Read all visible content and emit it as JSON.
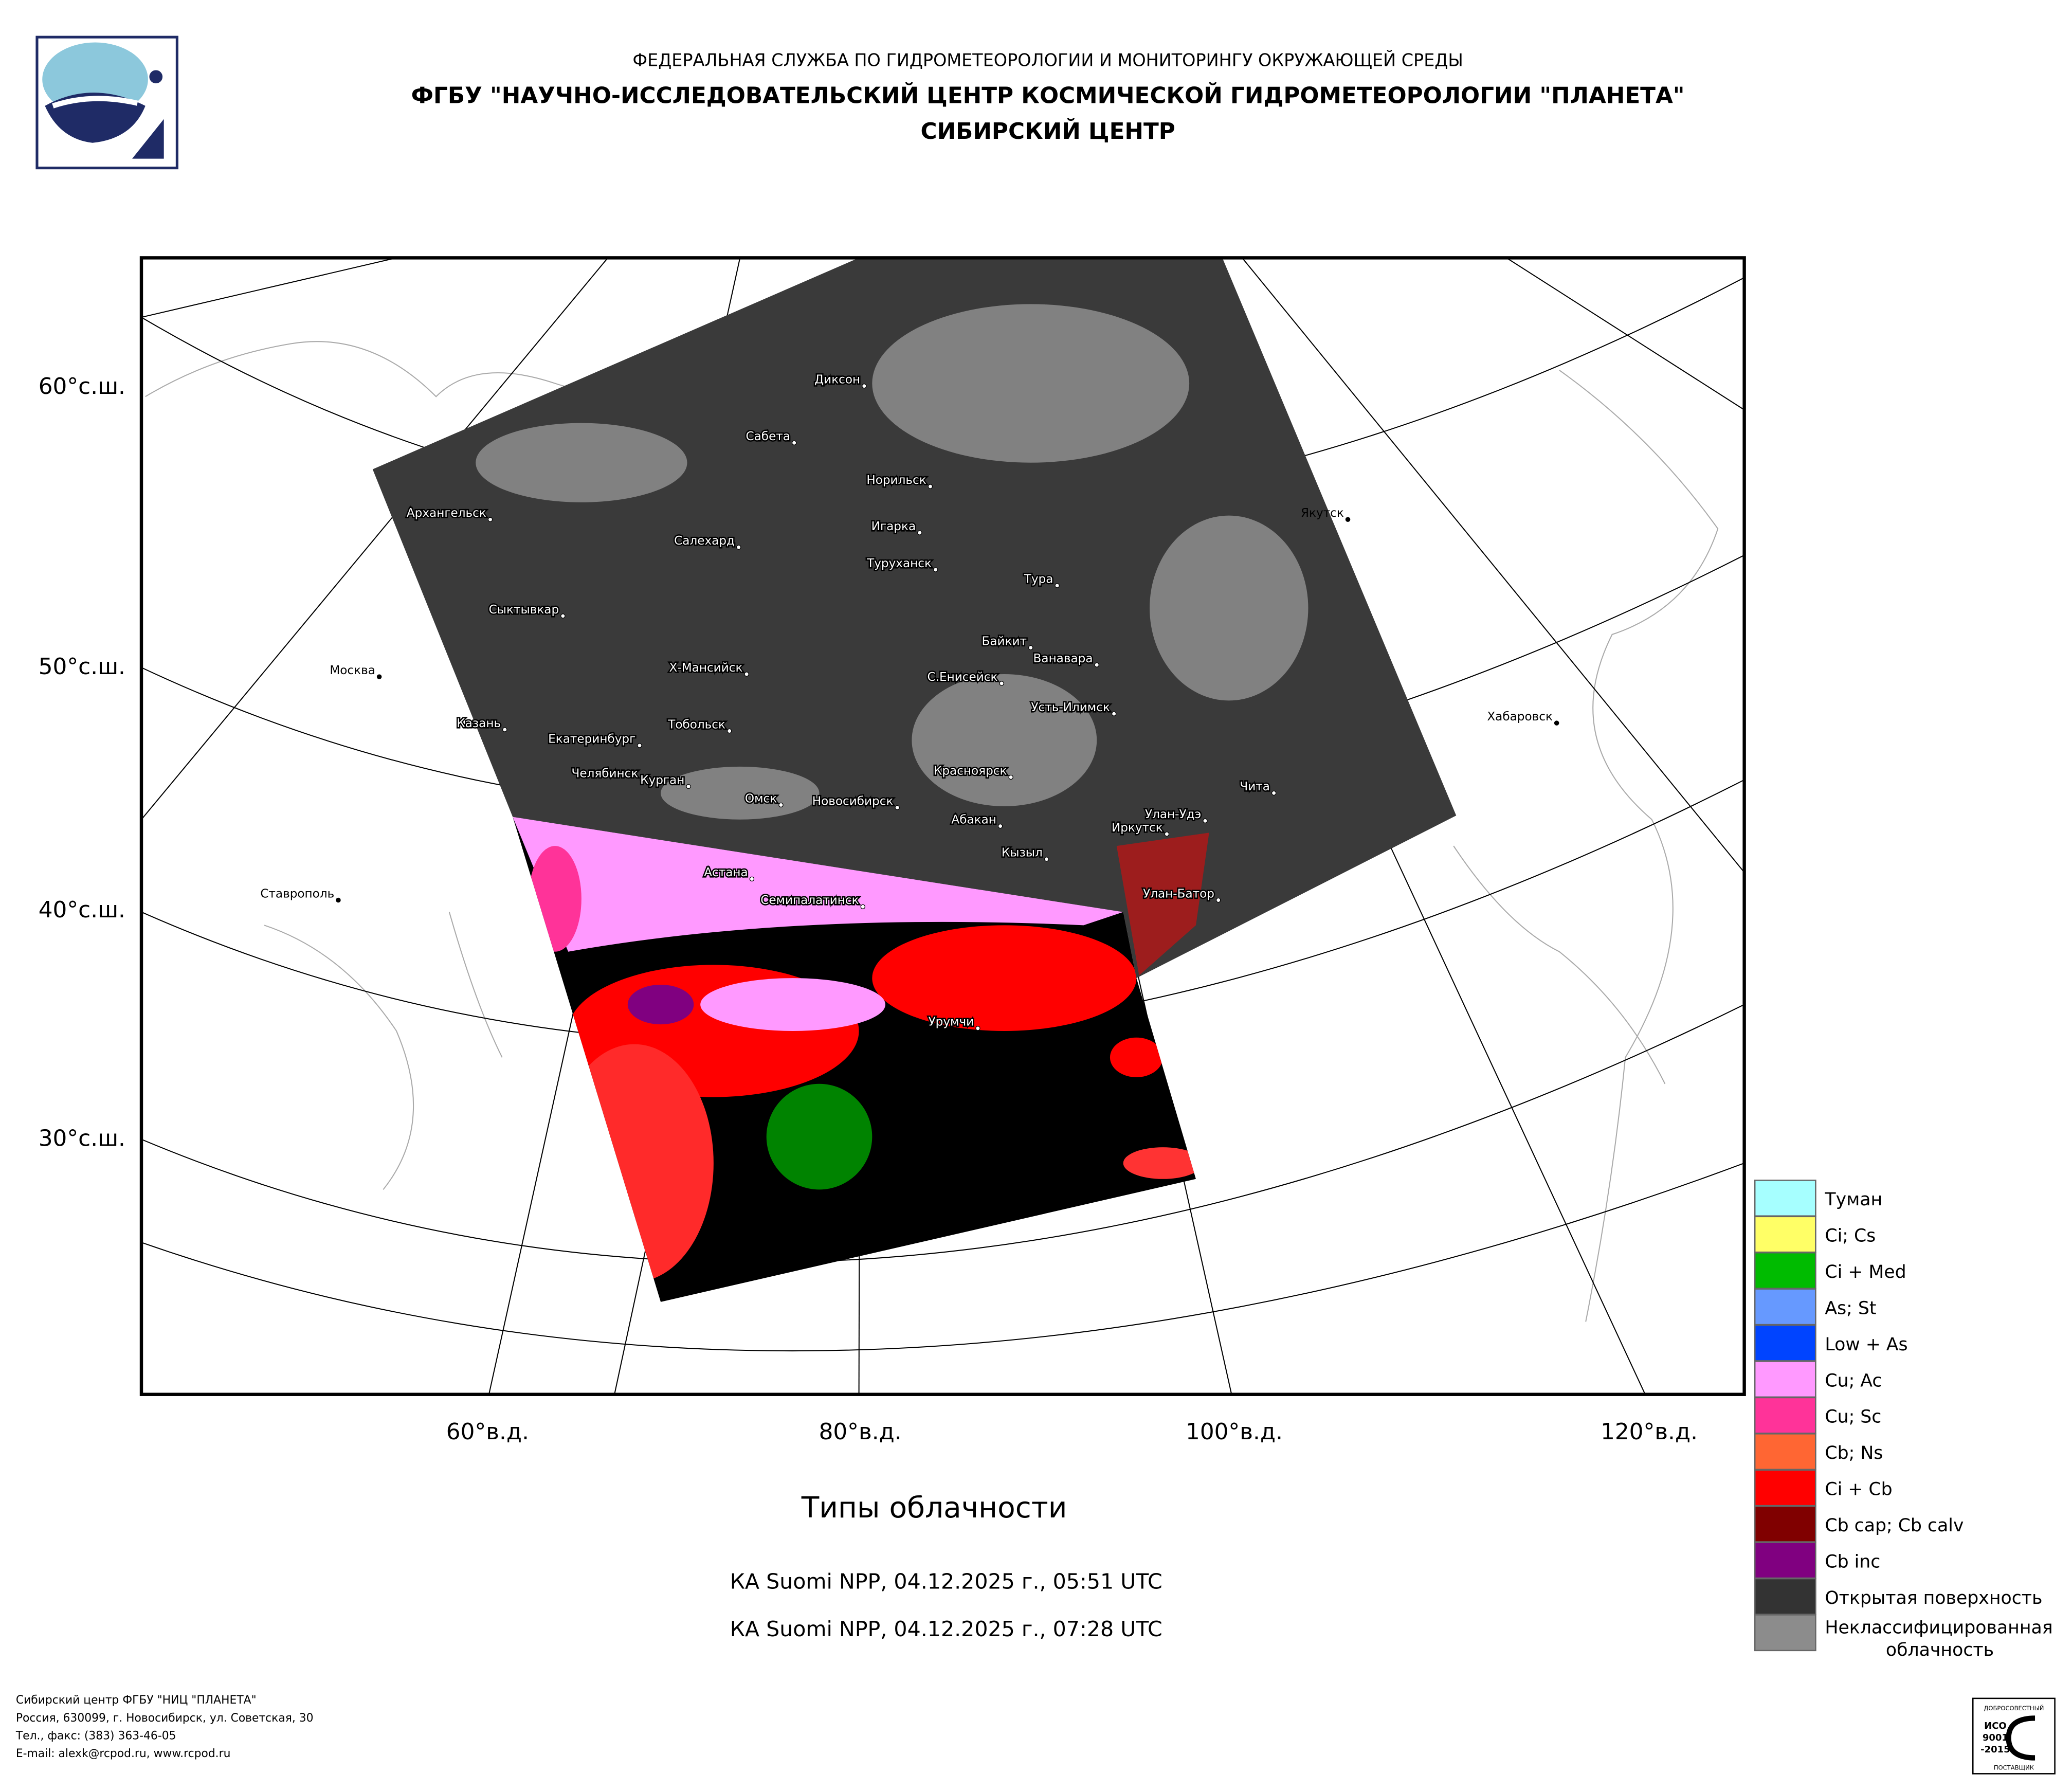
{
  "header": {
    "line1": "ФЕДЕРАЛЬНАЯ СЛУЖБА ПО ГИДРОМЕТЕОРОЛОГИИ И МОНИТОРИНГУ ОКРУЖАЮЩЕЙ СРЕДЫ",
    "line2": "ФГБУ \"НАУЧНО-ИССЛЕДОВАТЕЛЬСКИЙ ЦЕНТР КОСМИЧЕСКОЙ ГИДРОМЕТЕОРОЛОГИИ \"ПЛАНЕТА\"",
    "line3": "СИБИРСКИЙ ЦЕНТР"
  },
  "map": {
    "cities": [
      "Диксон",
      "Сабета",
      "Норильск",
      "Архангельск",
      "Игарка",
      "Салехард",
      "Туруханск",
      "Якутск",
      "Тура",
      "Сыктывкар",
      "Байкит",
      "Ванавара",
      "Москва",
      "Х-Мансийск",
      "С.Енисейск",
      "Усть-Илимск",
      "Хабаровск",
      "Казань",
      "Тобольск",
      "Екатеринбург",
      "Красноярск",
      "Чита",
      "Челябинск",
      "Курган",
      "Омск",
      "Новосибирск",
      "Абакан",
      "Улан-Удэ",
      "Иркутск",
      "Кызыл",
      "Астана",
      "Ставрополь",
      "Семипалатинск",
      "Улан-Батор",
      "Урумчи"
    ],
    "lat_labels": [
      "60°с.ш.",
      "50°с.ш.",
      "40°с.ш.",
      "30°с.ш."
    ],
    "lon_labels": [
      "60°в.д.",
      "80°в.д.",
      "100°в.д.",
      "120°в.д."
    ]
  },
  "title": "Типы облачности",
  "passes": [
    "КА Suomi NPP, 04.12.2025 г., 05:51 UTC",
    "КА Suomi NPP, 04.12.2025 г., 07:28 UTC"
  ],
  "legend": [
    {
      "label": "Туман",
      "color": "#a6ffff"
    },
    {
      "label": "Ci; Cs",
      "color": "#ffff66"
    },
    {
      "label": "Ci + Med",
      "color": "#00bb00"
    },
    {
      "label": "As; St",
      "color": "#6699ff"
    },
    {
      "label": "Low + As",
      "color": "#0044ff"
    },
    {
      "label": "Cu; Ac",
      "color": "#ff99ff"
    },
    {
      "label": "Cu; Sc",
      "color": "#ff3399"
    },
    {
      "label": "Cb; Ns",
      "color": "#ff6633"
    },
    {
      "label": "Ci + Cb",
      "color": "#ff0000"
    },
    {
      "label": "Cb cap; Cb calv",
      "color": "#800000"
    },
    {
      "label": "Cb inc",
      "color": "#800080"
    },
    {
      "label": "Открытая поверхность",
      "color": "#333333"
    },
    {
      "label": [
        "Неклассифицированная",
        "облачность"
      ],
      "color": "#8c8c8c"
    }
  ],
  "footer": [
    "Сибирский центр ФГБУ \"НИЦ \"ПЛАНЕТА\"",
    "Россия, 630099, г. Новосибирск, ул. Советская, 30",
    "Тел., факс: (383) 363-46-05",
    "E-mail: alexk@rcpod.ru, www.rcpod.ru"
  ],
  "certificate": [
    "ДОБРОСОВЕСТНЫЙ",
    "ИСО",
    "9001",
    "-2015",
    "ПОСТАВЩИК"
  ]
}
